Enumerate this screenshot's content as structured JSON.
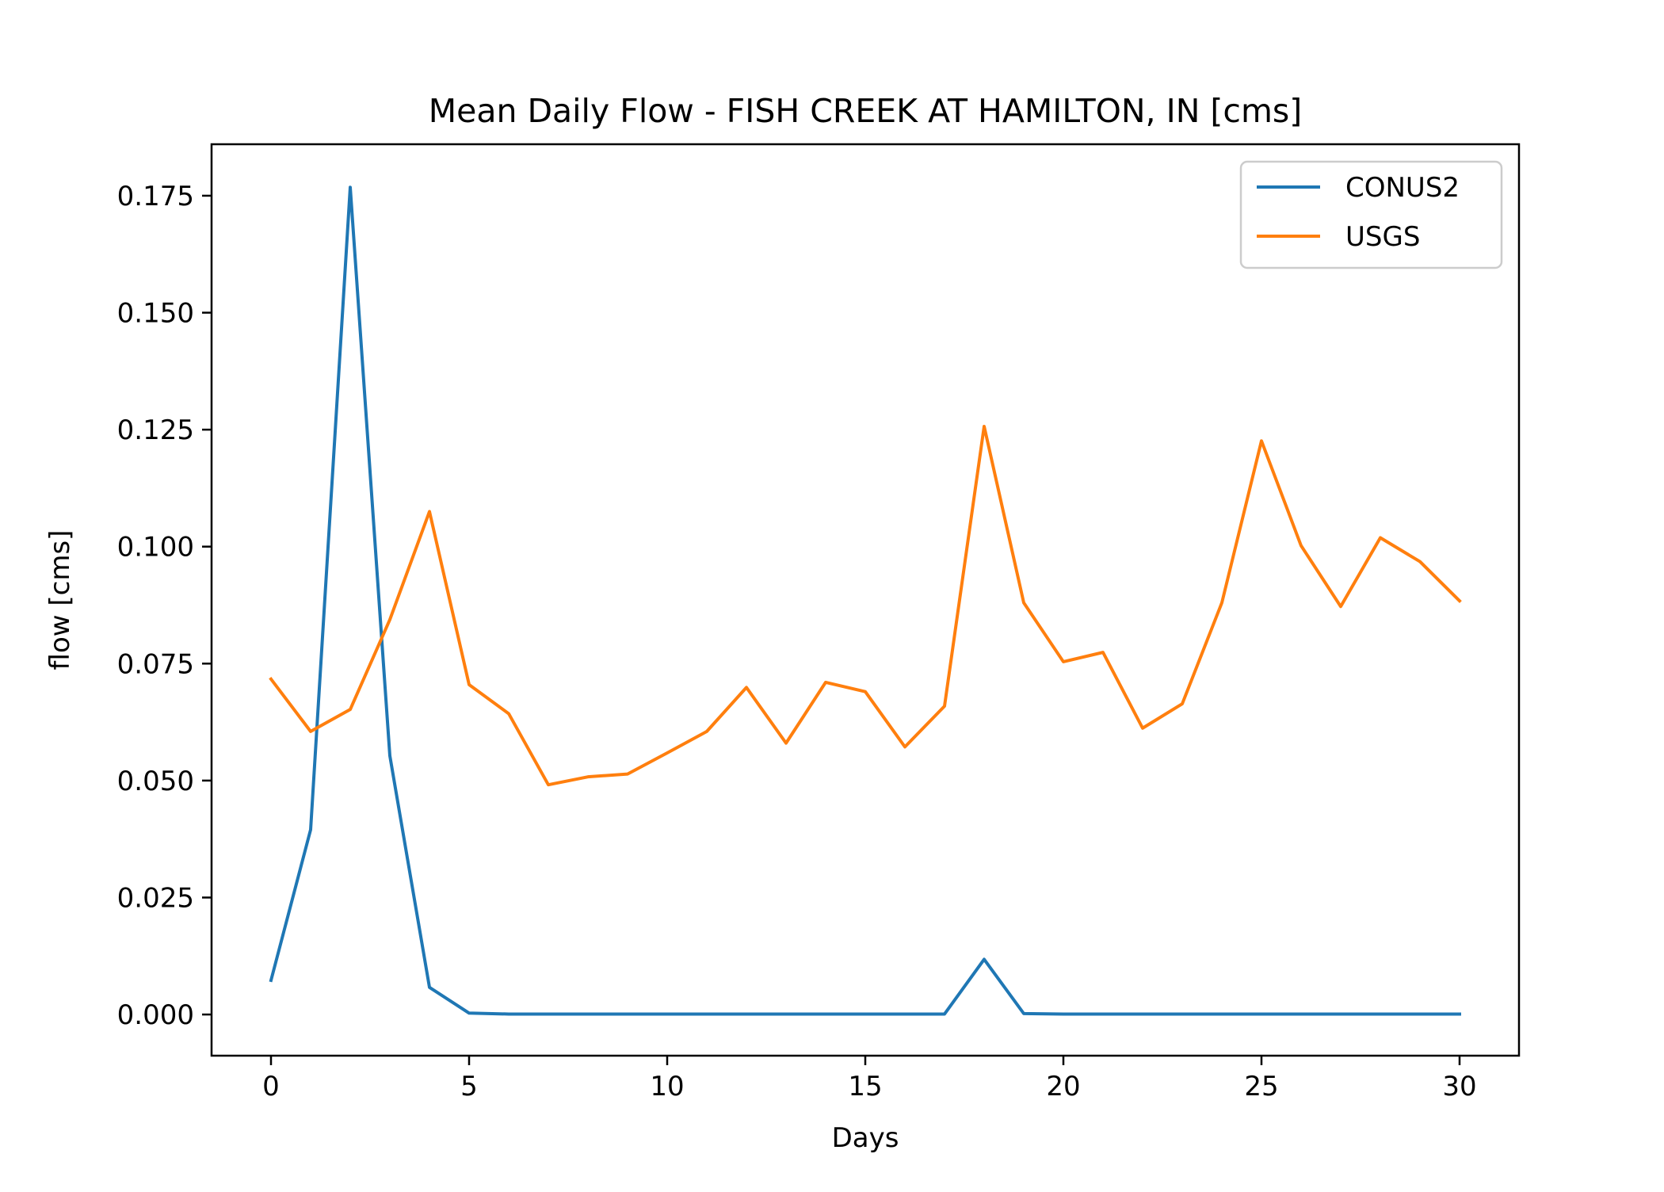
{
  "chart_data": {
    "type": "line",
    "title": "Mean Daily Flow - FISH CREEK AT HAMILTON, IN [cms]",
    "xlabel": "Days",
    "ylabel": "flow [cms]",
    "xlim": [
      -1.5,
      31.5
    ],
    "ylim": [
      -0.0088,
      0.186
    ],
    "xticks": [
      0,
      5,
      10,
      15,
      20,
      25,
      30
    ],
    "xtick_labels": [
      "0",
      "5",
      "10",
      "15",
      "20",
      "25",
      "30"
    ],
    "yticks": [
      0.0,
      0.025,
      0.05,
      0.075,
      0.1,
      0.125,
      0.15,
      0.175
    ],
    "ytick_labels": [
      "0.000",
      "0.025",
      "0.050",
      "0.075",
      "0.100",
      "0.125",
      "0.150",
      "0.175"
    ],
    "grid": false,
    "legend_position": "top-right",
    "x": [
      0,
      1,
      2,
      3,
      4,
      5,
      6,
      7,
      8,
      9,
      10,
      11,
      12,
      13,
      14,
      15,
      16,
      17,
      18,
      19,
      20,
      21,
      22,
      23,
      24,
      25,
      26,
      27,
      28,
      29,
      30
    ],
    "series": [
      {
        "name": "CONUS2",
        "color": "#1f77b4",
        "values": [
          0.0073,
          0.0395,
          0.1768,
          0.0553,
          0.0058,
          0.0003,
          0.0001,
          0.0001,
          0.0001,
          0.0001,
          0.0001,
          0.0001,
          0.0001,
          0.0001,
          0.0001,
          0.0001,
          0.0001,
          0.0001,
          0.0118,
          0.0002,
          0.0001,
          0.0001,
          0.0001,
          0.0001,
          0.0001,
          0.0001,
          0.0001,
          0.0001,
          0.0001,
          0.0001,
          0.0001
        ]
      },
      {
        "name": "USGS",
        "color": "#ff7f0e",
        "values": [
          0.0717,
          0.0605,
          0.0652,
          0.0844,
          0.1075,
          0.0705,
          0.0643,
          0.0491,
          0.0508,
          0.0514,
          0.0559,
          0.0605,
          0.0699,
          0.058,
          0.071,
          0.069,
          0.0572,
          0.0659,
          0.1257,
          0.088,
          0.0754,
          0.0774,
          0.0612,
          0.0664,
          0.088,
          0.1226,
          0.1002,
          0.0872,
          0.1019,
          0.0968,
          0.0884
        ]
      }
    ]
  }
}
